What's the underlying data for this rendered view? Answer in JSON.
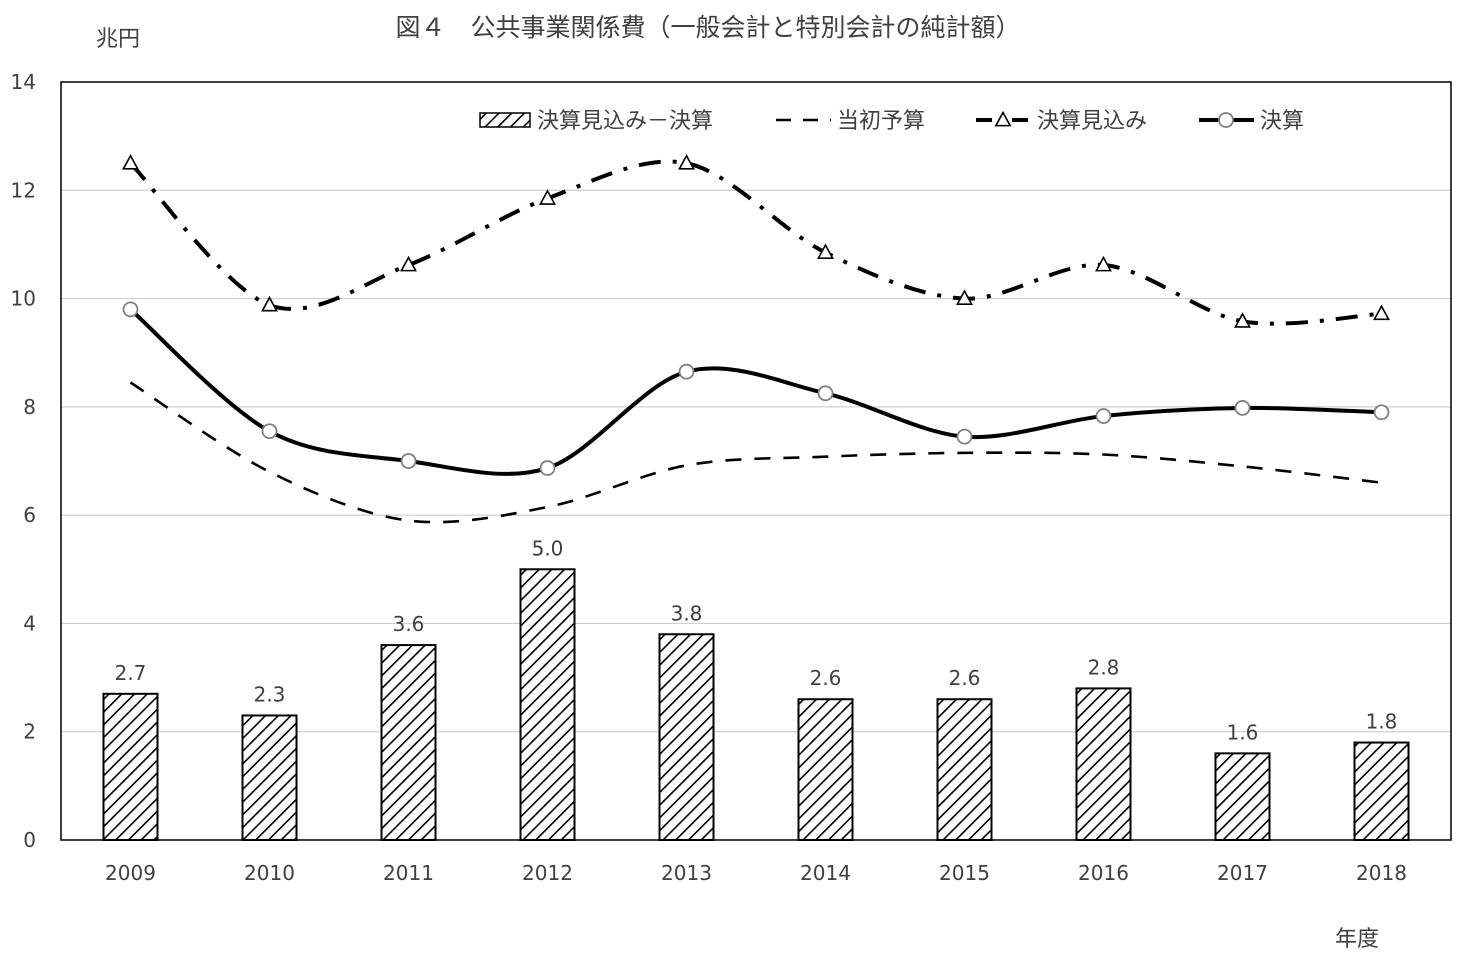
{
  "chart_data": {
    "type": "bar",
    "title": "図４　公共事業関係費（一般会計と特別会計の純計額）",
    "ylabel": "兆円",
    "xlabel": "年度",
    "ylim": [
      0,
      14
    ],
    "yticks": [
      0,
      2,
      4,
      6,
      8,
      10,
      12,
      14
    ],
    "grid": true,
    "legend_position": "top",
    "categories": [
      "2009",
      "2010",
      "2011",
      "2012",
      "2013",
      "2014",
      "2015",
      "2016",
      "2017",
      "2018"
    ],
    "series": [
      {
        "name": "決算見込み－決算",
        "kind": "bar",
        "pattern": "diagonal-hatch",
        "values": [
          2.7,
          2.3,
          3.6,
          5.0,
          3.8,
          2.6,
          2.6,
          2.8,
          1.6,
          1.8
        ],
        "labels": [
          "2.7",
          "2.3",
          "3.6",
          "5.0",
          "3.8",
          "2.6",
          "2.6",
          "2.8",
          "1.6",
          "1.8"
        ]
      },
      {
        "name": "当初予算",
        "kind": "line",
        "dash": "dashed",
        "values": [
          8.45,
          6.8,
          5.9,
          6.15,
          6.92,
          7.08,
          7.15,
          7.12,
          6.9,
          6.6
        ]
      },
      {
        "name": "決算見込み",
        "kind": "line",
        "dash": "dash-dot",
        "marker": "triangle",
        "values": [
          12.5,
          9.88,
          10.62,
          11.85,
          12.5,
          10.85,
          10.0,
          10.62,
          9.58,
          9.72
        ]
      },
      {
        "name": "決算",
        "kind": "line",
        "dash": "solid",
        "marker": "circle",
        "values": [
          9.8,
          7.55,
          7.0,
          6.87,
          8.65,
          8.25,
          7.45,
          7.83,
          7.98,
          7.9
        ]
      }
    ],
    "colors": {
      "line": "#000000",
      "grid": "#d0d0d0",
      "marker_fill": "#ffffff",
      "marker_stroke": "#808080"
    }
  }
}
